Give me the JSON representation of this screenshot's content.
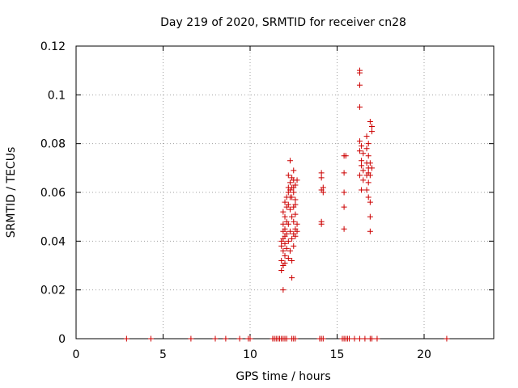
{
  "chart_data": {
    "type": "scatter",
    "title": "Day 219 of 2020, SRMTID for receiver cn28",
    "xlabel": "GPS time / hours",
    "ylabel": "SRMTID / TECUs",
    "xlim": [
      0,
      24
    ],
    "ylim": [
      0,
      0.12
    ],
    "xticks": [
      0,
      5,
      10,
      15,
      20
    ],
    "xtick_labels": [
      "0",
      "5",
      "10",
      "15",
      "20"
    ],
    "yticks": [
      0,
      0.02,
      0.04,
      0.06,
      0.08,
      0.1,
      0.12
    ],
    "ytick_labels": [
      "0",
      "0.02",
      "0.04",
      "0.06",
      "0.08",
      "0.1",
      "0.12"
    ],
    "grid": true,
    "marker": "+",
    "colors": {
      "series": "#cc0000",
      "grid": "#a0a0a0",
      "axes": "#000000"
    },
    "series": [
      {
        "name": "SRMTID",
        "points": [
          [
            2.9,
            0
          ],
          [
            4.3,
            0
          ],
          [
            6.6,
            0
          ],
          [
            8.0,
            0
          ],
          [
            8.6,
            0
          ],
          [
            9.4,
            0
          ],
          [
            9.9,
            0
          ],
          [
            10.0,
            0
          ],
          [
            11.3,
            0
          ],
          [
            11.4,
            0
          ],
          [
            11.5,
            0
          ],
          [
            11.6,
            0
          ],
          [
            11.7,
            0
          ],
          [
            11.8,
            0
          ],
          [
            11.9,
            0
          ],
          [
            12.0,
            0
          ],
          [
            12.1,
            0
          ],
          [
            12.4,
            0
          ],
          [
            12.5,
            0
          ],
          [
            12.6,
            0
          ],
          [
            14.0,
            0
          ],
          [
            14.1,
            0
          ],
          [
            14.2,
            0
          ],
          [
            15.3,
            0
          ],
          [
            15.4,
            0
          ],
          [
            15.5,
            0
          ],
          [
            15.6,
            0
          ],
          [
            15.7,
            0
          ],
          [
            16.0,
            0
          ],
          [
            16.3,
            0
          ],
          [
            16.6,
            0
          ],
          [
            16.9,
            0
          ],
          [
            17.0,
            0
          ],
          [
            17.3,
            0
          ],
          [
            21.3,
            0
          ],
          [
            11.9,
            0.02
          ],
          [
            11.8,
            0.028
          ],
          [
            11.9,
            0.03
          ],
          [
            11.8,
            0.032
          ],
          [
            12.0,
            0.034
          ],
          [
            11.9,
            0.036
          ],
          [
            11.8,
            0.038
          ],
          [
            12.0,
            0.039
          ],
          [
            11.8,
            0.04
          ],
          [
            11.9,
            0.041
          ],
          [
            12.0,
            0.042
          ],
          [
            12.1,
            0.043
          ],
          [
            11.9,
            0.044
          ],
          [
            12.0,
            0.045
          ],
          [
            11.9,
            0.047
          ],
          [
            12.1,
            0.048
          ],
          [
            12.0,
            0.05
          ],
          [
            11.9,
            0.052
          ],
          [
            12.1,
            0.054
          ],
          [
            12.0,
            0.056
          ],
          [
            12.1,
            0.058
          ],
          [
            11.9,
            0.03
          ],
          [
            12.1,
            0.037
          ],
          [
            12.0,
            0.031
          ],
          [
            12.2,
            0.033
          ],
          [
            12.3,
            0.036
          ],
          [
            12.2,
            0.04
          ],
          [
            12.3,
            0.044
          ],
          [
            12.2,
            0.047
          ],
          [
            12.4,
            0.05
          ],
          [
            12.3,
            0.053
          ],
          [
            12.2,
            0.055
          ],
          [
            12.3,
            0.058
          ],
          [
            12.2,
            0.06
          ],
          [
            12.3,
            0.061
          ],
          [
            12.4,
            0.062
          ],
          [
            12.2,
            0.062
          ],
          [
            12.3,
            0.064
          ],
          [
            12.4,
            0.066
          ],
          [
            12.2,
            0.067
          ],
          [
            12.3,
            0.073
          ],
          [
            12.5,
            0.069
          ],
          [
            12.5,
            0.065
          ],
          [
            12.6,
            0.063
          ],
          [
            12.5,
            0.06
          ],
          [
            12.6,
            0.057
          ],
          [
            12.5,
            0.054
          ],
          [
            12.6,
            0.051
          ],
          [
            12.5,
            0.048
          ],
          [
            12.6,
            0.045
          ],
          [
            12.5,
            0.043
          ],
          [
            12.7,
            0.044
          ],
          [
            12.6,
            0.042
          ],
          [
            12.4,
            0.025
          ],
          [
            12.4,
            0.032
          ],
          [
            12.5,
            0.038
          ],
          [
            12.4,
            0.041
          ],
          [
            12.7,
            0.047
          ],
          [
            12.6,
            0.055
          ],
          [
            12.7,
            0.065
          ],
          [
            12.5,
            0.062
          ],
          [
            12.4,
            0.058
          ],
          [
            14.1,
            0.047
          ],
          [
            14.1,
            0.048
          ],
          [
            14.2,
            0.06
          ],
          [
            14.1,
            0.061
          ],
          [
            14.2,
            0.062
          ],
          [
            14.1,
            0.066
          ],
          [
            14.1,
            0.068
          ],
          [
            15.4,
            0.045
          ],
          [
            15.4,
            0.054
          ],
          [
            15.4,
            0.06
          ],
          [
            15.4,
            0.068
          ],
          [
            15.4,
            0.075
          ],
          [
            15.5,
            0.075
          ],
          [
            16.3,
            0.11
          ],
          [
            16.3,
            0.109
          ],
          [
            16.3,
            0.104
          ],
          [
            16.3,
            0.095
          ],
          [
            16.3,
            0.081
          ],
          [
            16.4,
            0.079
          ],
          [
            16.3,
            0.077
          ],
          [
            16.5,
            0.076
          ],
          [
            16.4,
            0.073
          ],
          [
            16.4,
            0.071
          ],
          [
            16.5,
            0.069
          ],
          [
            16.3,
            0.067
          ],
          [
            16.5,
            0.065
          ],
          [
            16.4,
            0.061
          ],
          [
            16.7,
            0.083
          ],
          [
            16.8,
            0.08
          ],
          [
            16.7,
            0.078
          ],
          [
            16.8,
            0.075
          ],
          [
            16.7,
            0.072
          ],
          [
            16.8,
            0.07
          ],
          [
            16.7,
            0.067
          ],
          [
            16.8,
            0.064
          ],
          [
            16.7,
            0.061
          ],
          [
            16.8,
            0.058
          ],
          [
            16.9,
            0.056
          ],
          [
            16.9,
            0.05
          ],
          [
            16.9,
            0.044
          ],
          [
            17.0,
            0.07
          ],
          [
            16.9,
            0.067
          ],
          [
            17.0,
            0.087
          ],
          [
            16.9,
            0.089
          ],
          [
            17.0,
            0.085
          ],
          [
            16.9,
            0.072
          ],
          [
            16.8,
            0.068
          ]
        ]
      }
    ]
  }
}
